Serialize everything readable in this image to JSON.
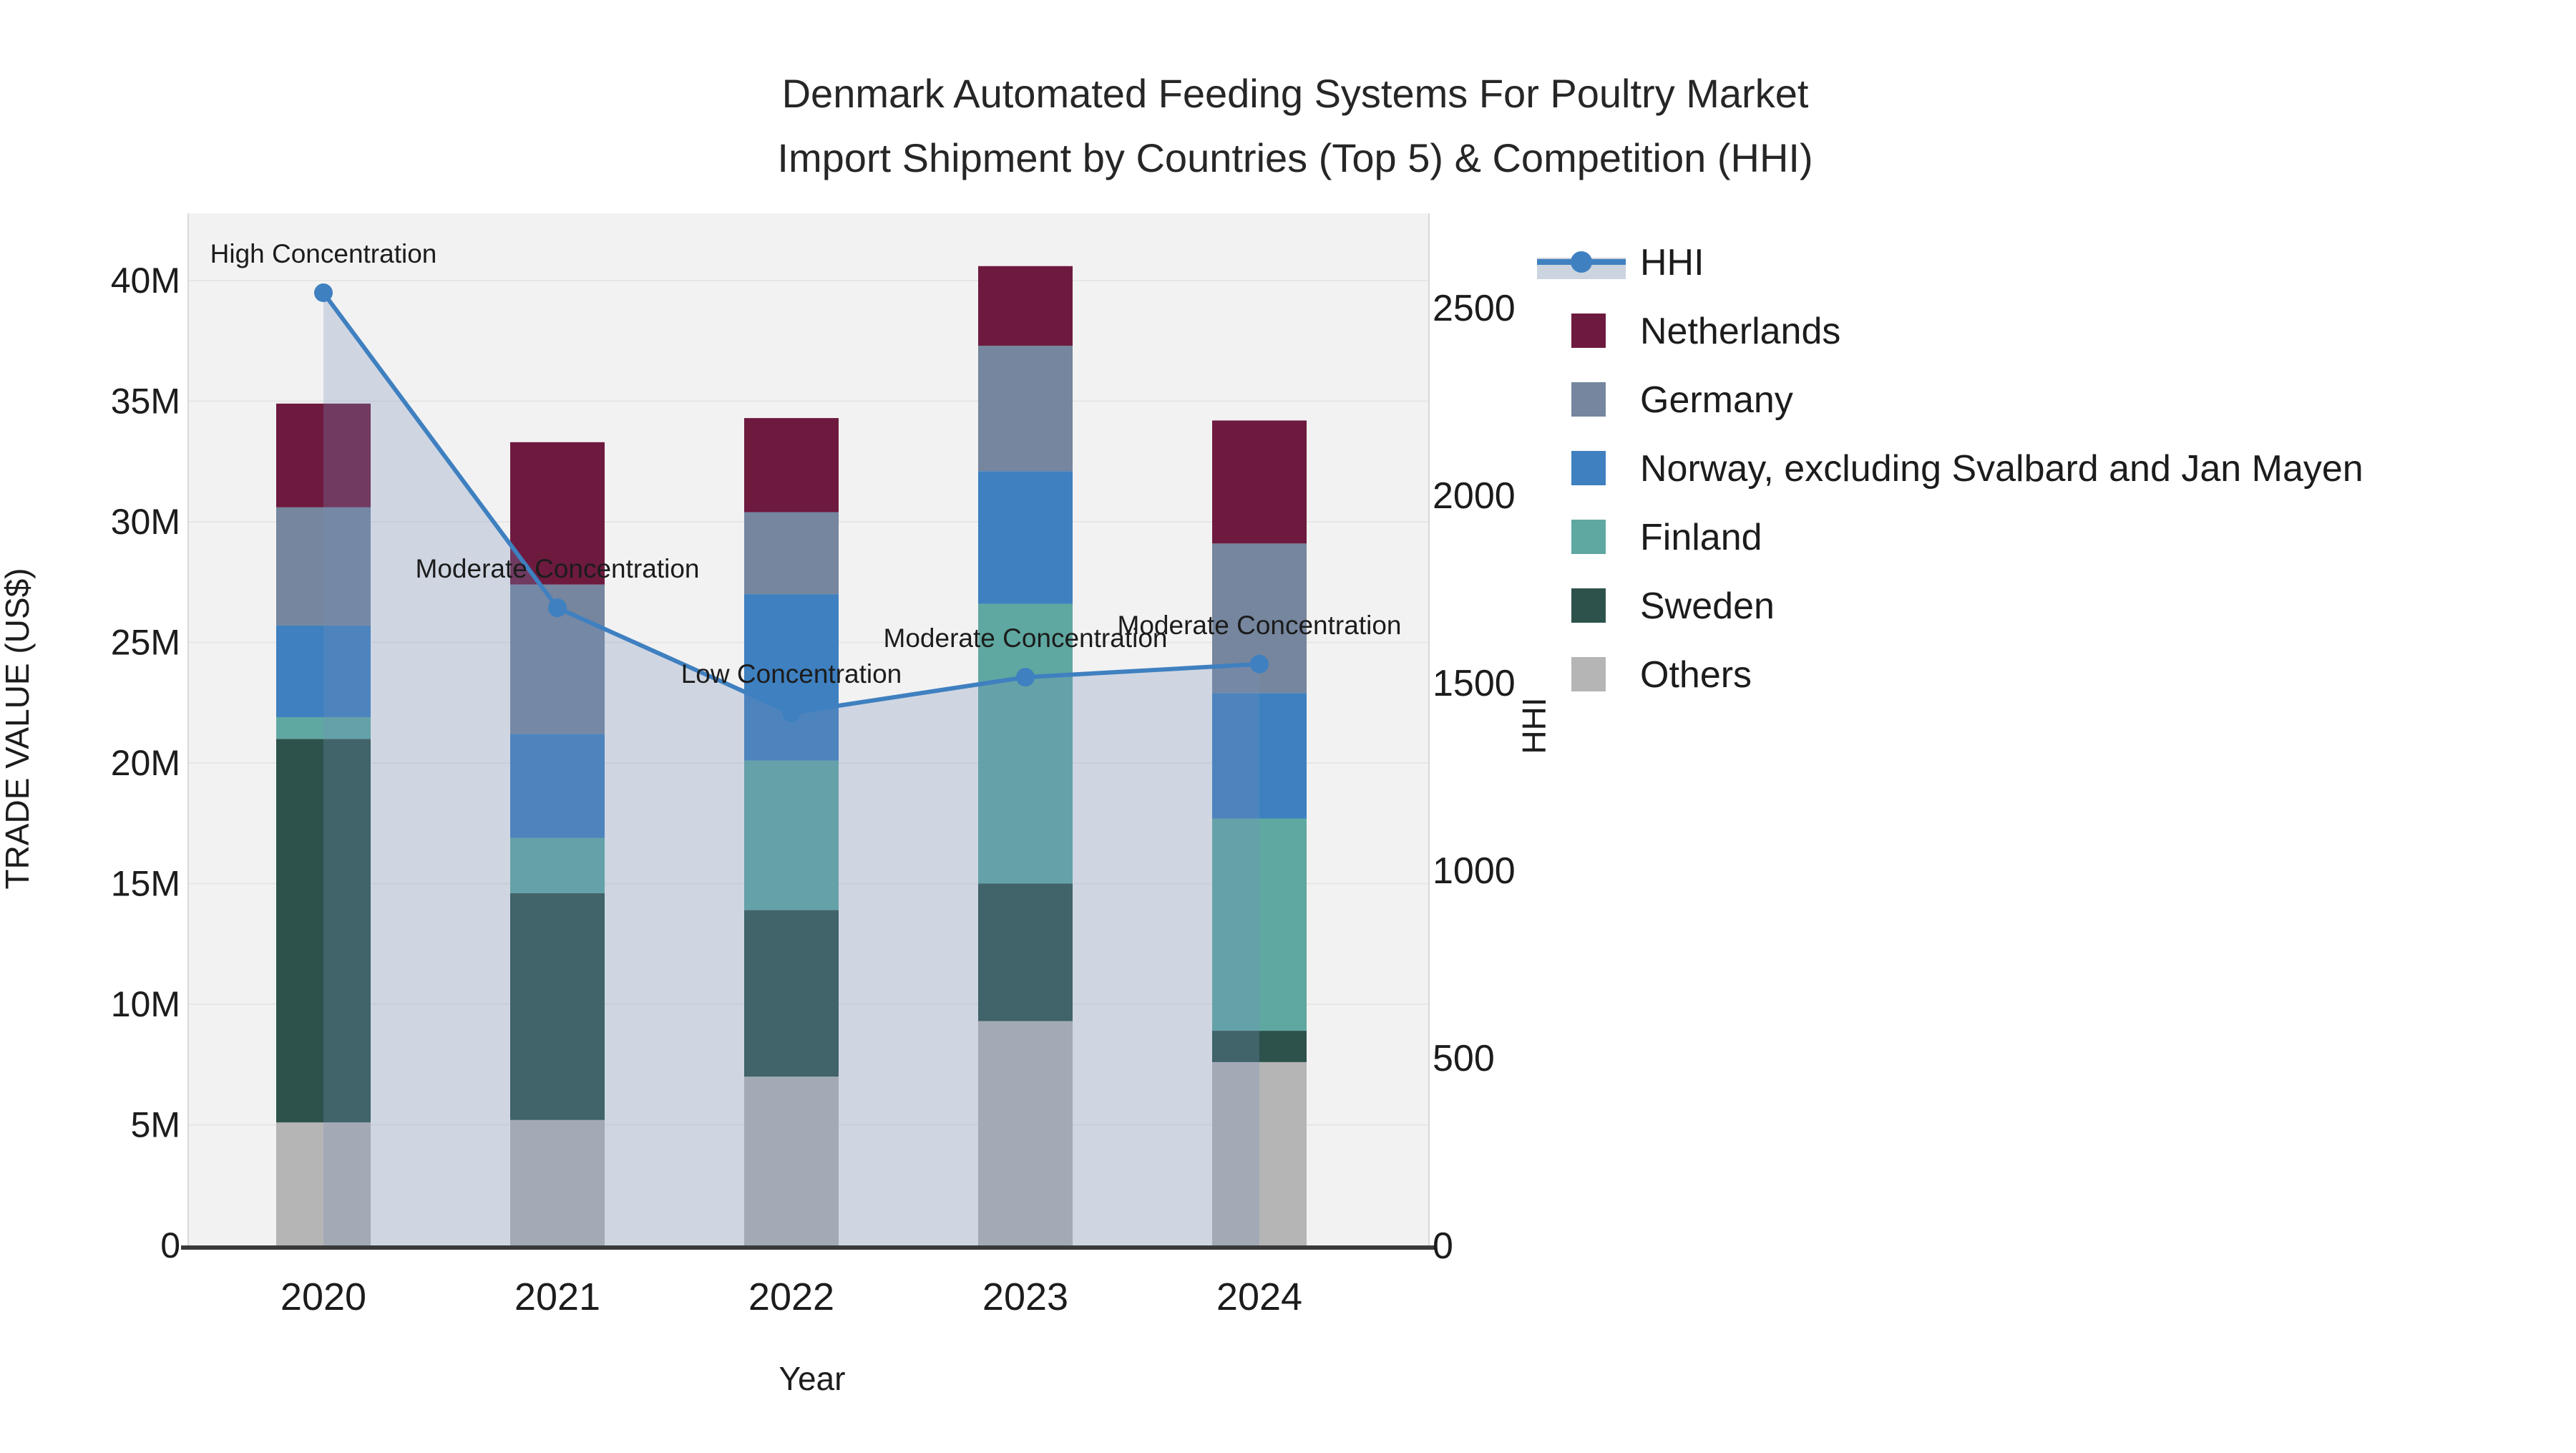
{
  "title": {
    "line1": "Denmark Automated Feeding Systems For Poultry Market",
    "line2": "Import Shipment by Countries (Top 5) & Competition (HHI)"
  },
  "chart_data": {
    "type": "stacked-bar+line",
    "categories": [
      "2020",
      "2021",
      "2022",
      "2023",
      "2024"
    ],
    "xlabel": "Year",
    "ylabel_left": "TRADE VALUE (US$)",
    "ylabel_right": "HHI",
    "y_left": {
      "unit": "M US$",
      "ylim": [
        0,
        41.5
      ],
      "tick_values": [
        0,
        5,
        10,
        15,
        20,
        25,
        30,
        35,
        40
      ],
      "tick_labels": [
        "0",
        "5M",
        "10M",
        "15M",
        "20M",
        "25M",
        "30M",
        "35M",
        "40M"
      ],
      "grid": true
    },
    "y_right": {
      "unit": "HHI index",
      "ylim": [
        0,
        2650
      ],
      "tick_values": [
        0,
        500,
        1000,
        1500,
        2000,
        2500
      ],
      "tick_labels": [
        "0",
        "500",
        "1000",
        "1500",
        "2000",
        "2500"
      ],
      "grid": false
    },
    "series": [
      {
        "key": "others",
        "name": "Others",
        "color": "#b5b5b5",
        "values": [
          5.1,
          5.2,
          7.0,
          9.3,
          7.6
        ]
      },
      {
        "key": "sweden",
        "name": "Sweden",
        "color": "#2d524b",
        "values": [
          15.9,
          9.4,
          6.9,
          5.7,
          1.3
        ]
      },
      {
        "key": "finland",
        "name": "Finland",
        "color": "#5fa8a1",
        "values": [
          0.9,
          2.3,
          6.2,
          11.6,
          8.8
        ]
      },
      {
        "key": "norway",
        "name": "Norway, excluding Svalbard and Jan Mayen",
        "color": "#3e80c0",
        "values": [
          3.8,
          4.3,
          6.9,
          5.5,
          5.2
        ]
      },
      {
        "key": "germany",
        "name": "Germany",
        "color": "#75869e",
        "values": [
          4.9,
          6.2,
          3.4,
          5.2,
          6.2
        ]
      },
      {
        "key": "netherlands",
        "name": "Netherlands",
        "color": "#6e1a3f",
        "values": [
          4.3,
          5.9,
          3.9,
          3.3,
          5.1
        ]
      }
    ],
    "bar_totals": [
      34.9,
      33.3,
      34.3,
      40.6,
      34.2
    ],
    "line_series": {
      "name": "HHI",
      "color": "#3f80c0",
      "area_fill": "rgba(118,143,186,0.28)",
      "values": [
        2540,
        1700,
        1420,
        1515,
        1550
      ]
    },
    "annotations": [
      {
        "year": "2020",
        "text": "High Concentration"
      },
      {
        "year": "2021",
        "text": "Moderate Concentration"
      },
      {
        "year": "2022",
        "text": "Low Concentration"
      },
      {
        "year": "2023",
        "text": "Moderate Concentration"
      },
      {
        "year": "2024",
        "text": "Moderate Concentration"
      }
    ],
    "legend_position": "right"
  },
  "legend": {
    "entries": [
      {
        "kind": "line",
        "label": "HHI",
        "color": "#3f80c0",
        "band_color": "#ccd4df"
      },
      {
        "kind": "swatch",
        "label": "Netherlands",
        "color": "#6e1a3f"
      },
      {
        "kind": "swatch",
        "label": "Germany",
        "color": "#75869e"
      },
      {
        "kind": "swatch",
        "label": "Norway, excluding Svalbard and Jan Mayen",
        "color": "#3e80c0"
      },
      {
        "kind": "swatch",
        "label": "Finland",
        "color": "#5fa8a1"
      },
      {
        "kind": "swatch",
        "label": "Sweden",
        "color": "#2d524b"
      },
      {
        "kind": "swatch",
        "label": "Others",
        "color": "#b5b5b5"
      }
    ]
  },
  "plot_style": {
    "background": "#f2f2f2",
    "gridline_color": "#e6e6e6",
    "axisline_color": "#3a3a3a"
  }
}
